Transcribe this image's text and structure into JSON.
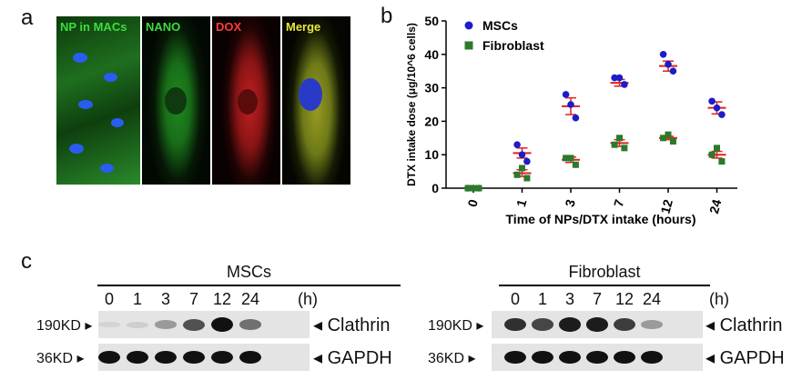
{
  "panels": {
    "a": "a",
    "b": "b",
    "c": "c"
  },
  "micrographs": [
    {
      "label": "NP in MACs",
      "label_color": "#3ddc3d"
    },
    {
      "label": "NANO",
      "label_color": "#3ddc3d"
    },
    {
      "label": "DOX",
      "label_color": "#ff3b3b"
    },
    {
      "label": "Merge",
      "label_color": "#e8e83a"
    }
  ],
  "chart_data": {
    "type": "scatter",
    "xlabel": "Time of NPs/DTX intake (hours)",
    "ylabel": "DTX intake dose (μg/10^6 cells)",
    "categories": [
      "0",
      "1",
      "3",
      "7",
      "12",
      "24"
    ],
    "ylim": [
      0,
      50
    ],
    "yticks": [
      "0",
      "10",
      "20",
      "30",
      "40",
      "50"
    ],
    "legend_position": "top-left",
    "series": [
      {
        "name": "MSCs",
        "color": "#1c1cc8",
        "marker": "circle",
        "points": [
          [
            0,
            0,
            0
          ],
          [
            13,
            10,
            8
          ],
          [
            28,
            25,
            21
          ],
          [
            33,
            33,
            31
          ],
          [
            40,
            37,
            35
          ],
          [
            26,
            24,
            22
          ]
        ],
        "mean": [
          0,
          10.5,
          24.5,
          31.5,
          36.5,
          24
        ],
        "sem": [
          0,
          1.5,
          2.5,
          1.0,
          1.5,
          1.8
        ]
      },
      {
        "name": "Fibroblast",
        "color": "#2a7a2a",
        "marker": "square",
        "points": [
          [
            0,
            0,
            0
          ],
          [
            4,
            6,
            3
          ],
          [
            9,
            9,
            7
          ],
          [
            13,
            15,
            12
          ],
          [
            15,
            16,
            14
          ],
          [
            10,
            12,
            8
          ]
        ],
        "mean": [
          0,
          4.5,
          8.5,
          13.5,
          15,
          10
        ],
        "sem": [
          0,
          1.0,
          0.8,
          1.0,
          0.5,
          1.0
        ]
      }
    ],
    "errorbar_color": "#e02020"
  },
  "western": {
    "groups": [
      {
        "title": "MSCs",
        "lanes": [
          "0",
          "1",
          "3",
          "7",
          "12",
          "24"
        ],
        "unit": "(h)",
        "rows": [
          {
            "marker": "190KD",
            "protein": "Clathrin",
            "intensity": [
              0.05,
              0.1,
              0.35,
              0.7,
              1.0,
              0.55
            ]
          },
          {
            "marker": "36KD",
            "protein": "GAPDH",
            "intensity": [
              1,
              1,
              1,
              1,
              1,
              1
            ]
          }
        ]
      },
      {
        "title": "Fibroblast",
        "lanes": [
          "0",
          "1",
          "3",
          "7",
          "12",
          "24"
        ],
        "unit": "(h)",
        "rows": [
          {
            "marker": "190KD",
            "protein": "Clathrin",
            "intensity": [
              0.85,
              0.75,
              0.95,
              0.95,
              0.8,
              0.35
            ]
          },
          {
            "marker": "36KD",
            "protein": "GAPDH",
            "intensity": [
              1,
              1,
              1,
              1,
              1,
              1
            ]
          }
        ]
      }
    ]
  }
}
